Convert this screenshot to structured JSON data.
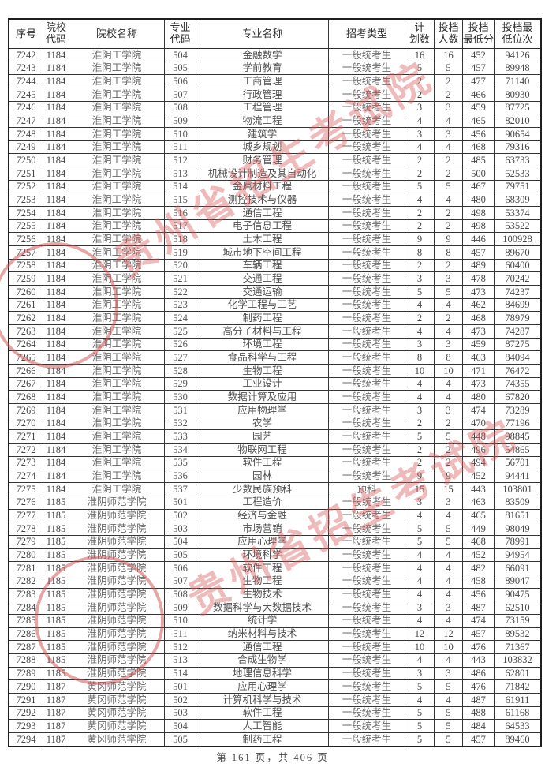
{
  "page": {
    "footer_text": "第 161 页，共 406 页"
  },
  "watermark": {
    "text": "贵州省招生考试院",
    "color": "#d65a5a"
  },
  "table": {
    "headers": [
      "序号",
      "院校\n代码",
      "院校名称",
      "专业\n代码",
      "专业名称",
      "招考类型",
      "计\n划数",
      "投档\n人数",
      "投档\n最低分",
      "投档最\n低位次"
    ],
    "rows": [
      [
        "7242",
        "1184",
        "淮阴工学院",
        "504",
        "金融数学",
        "一般统考生",
        "16",
        "16",
        "452",
        "94126"
      ],
      [
        "7243",
        "1184",
        "淮阴工学院",
        "505",
        "学前教育",
        "一般统考生",
        "5",
        "5",
        "457",
        "89948"
      ],
      [
        "7244",
        "1184",
        "淮阴工学院",
        "506",
        "工商管理",
        "一般统考生",
        "2",
        "2",
        "477",
        "71140"
      ],
      [
        "7245",
        "1184",
        "淮阴工学院",
        "507",
        "行政管理",
        "一般统考生",
        "2",
        "2",
        "466",
        "80930"
      ],
      [
        "7246",
        "1184",
        "淮阴工学院",
        "508",
        "工程管理",
        "一般统考生",
        "3",
        "3",
        "459",
        "87725"
      ],
      [
        "7247",
        "1184",
        "淮阴工学院",
        "509",
        "物流工程",
        "一般统考生",
        "4",
        "4",
        "465",
        "82010"
      ],
      [
        "7248",
        "1184",
        "淮阴工学院",
        "510",
        "建筑学",
        "一般统考生",
        "3",
        "3",
        "456",
        "90654"
      ],
      [
        "7249",
        "1184",
        "淮阴工学院",
        "511",
        "城乡规划",
        "一般统考生",
        "4",
        "4",
        "468",
        "79316"
      ],
      [
        "7250",
        "1184",
        "淮阴工学院",
        "512",
        "财务管理",
        "一般统考生",
        "2",
        "2",
        "485",
        "63733"
      ],
      [
        "7251",
        "1184",
        "淮阴工学院",
        "513",
        "机械设计制造及其自动化",
        "一般统考生",
        "2",
        "2",
        "500",
        "52533"
      ],
      [
        "7252",
        "1184",
        "淮阴工学院",
        "514",
        "金属材料工程",
        "一般统考生",
        "5",
        "5",
        "467",
        "79751"
      ],
      [
        "7253",
        "1184",
        "淮阴工学院",
        "515",
        "测控技术与仪器",
        "一般统考生",
        "4",
        "4",
        "480",
        "68309"
      ],
      [
        "7254",
        "1184",
        "淮阴工学院",
        "516",
        "通信工程",
        "一般统考生",
        "2",
        "2",
        "498",
        "53374"
      ],
      [
        "7255",
        "1184",
        "淮阴工学院",
        "517",
        "电子信息工程",
        "一般统考生",
        "2",
        "2",
        "498",
        "53522"
      ],
      [
        "7256",
        "1184",
        "淮阴工学院",
        "518",
        "土木工程",
        "一般统考生",
        "9",
        "9",
        "446",
        "100928"
      ],
      [
        "7257",
        "1184",
        "淮阴工学院",
        "519",
        "城市地下空间工程",
        "一般统考生",
        "8",
        "8",
        "457",
        "89670"
      ],
      [
        "7258",
        "1184",
        "淮阴工学院",
        "520",
        "车辆工程",
        "一般统考生",
        "2",
        "2",
        "489",
        "60400"
      ],
      [
        "7259",
        "1184",
        "淮阴工学院",
        "521",
        "交通工程",
        "一般统考生",
        "3",
        "3",
        "478",
        "70242"
      ],
      [
        "7260",
        "1184",
        "淮阴工学院",
        "522",
        "交通运输",
        "一般统考生",
        "5",
        "5",
        "473",
        "74237"
      ],
      [
        "7261",
        "1184",
        "淮阴工学院",
        "523",
        "化学工程与工艺",
        "一般统考生",
        "4",
        "4",
        "462",
        "84699"
      ],
      [
        "7262",
        "1184",
        "淮阴工学院",
        "524",
        "制药工程",
        "一般统考生",
        "2",
        "2",
        "468",
        "78979"
      ],
      [
        "7263",
        "1184",
        "淮阴工学院",
        "525",
        "高分子材料与工程",
        "一般统考生",
        "4",
        "4",
        "473",
        "74287"
      ],
      [
        "7264",
        "1184",
        "淮阴工学院",
        "526",
        "环境工程",
        "一般统考生",
        "3",
        "3",
        "459",
        "87275"
      ],
      [
        "7265",
        "1184",
        "淮阴工学院",
        "527",
        "食品科学与工程",
        "一般统考生",
        "8",
        "8",
        "463",
        "84094"
      ],
      [
        "7266",
        "1184",
        "淮阴工学院",
        "528",
        "生物工程",
        "一般统考生",
        "10",
        "10",
        "471",
        "76472"
      ],
      [
        "7267",
        "1184",
        "淮阴工学院",
        "529",
        "工业设计",
        "一般统考生",
        "4",
        "4",
        "473",
        "74355"
      ],
      [
        "7268",
        "1184",
        "淮阴工学院",
        "530",
        "数据计算及应用",
        "一般统考生",
        "4",
        "4",
        "480",
        "67820"
      ],
      [
        "7269",
        "1184",
        "淮阴工学院",
        "531",
        "应用物理学",
        "一般统考生",
        "3",
        "3",
        "474",
        "73289"
      ],
      [
        "7270",
        "1184",
        "淮阴工学院",
        "532",
        "农学",
        "一般统考生",
        "2",
        "2",
        "470",
        "77196"
      ],
      [
        "7271",
        "1184",
        "淮阴工学院",
        "533",
        "园艺",
        "一般统考生",
        "5",
        "5",
        "448",
        "98845"
      ],
      [
        "7272",
        "1184",
        "淮阴工学院",
        "534",
        "物联网工程",
        "一般统考生",
        "2",
        "2",
        "496",
        "54865"
      ],
      [
        "7273",
        "1184",
        "淮阴工学院",
        "535",
        "软件工程",
        "一般统考生",
        "2",
        "2",
        "494",
        "56701"
      ],
      [
        "7274",
        "1184",
        "淮阴工学院",
        "536",
        "园林",
        "一般统考生",
        "9",
        "9",
        "452",
        "94441"
      ],
      [
        "7275",
        "1184",
        "淮阴工学院",
        "537",
        "少数民族预科",
        "预科",
        "15",
        "15",
        "443",
        "103801"
      ],
      [
        "7276",
        "1185",
        "淮阴师范学院",
        "501",
        "工程造价",
        "一般统考生",
        "3",
        "3",
        "463",
        "83509"
      ],
      [
        "7277",
        "1185",
        "淮阴师范学院",
        "502",
        "经济与金融",
        "一般统考生",
        "4",
        "4",
        "465",
        "81651"
      ],
      [
        "7278",
        "1185",
        "淮阴师范学院",
        "503",
        "市场营销",
        "一般统考生",
        "5",
        "5",
        "449",
        "98049"
      ],
      [
        "7279",
        "1185",
        "淮阴师范学院",
        "504",
        "应用心理学",
        "一般统考生",
        "5",
        "5",
        "468",
        "78991"
      ],
      [
        "7280",
        "1185",
        "淮阴师范学院",
        "505",
        "环境科学",
        "一般统考生",
        "4",
        "4",
        "452",
        "94954"
      ],
      [
        "7281",
        "1185",
        "淮阴师范学院",
        "506",
        "软件工程",
        "一般统考生",
        "4",
        "4",
        "482",
        "66091"
      ],
      [
        "7282",
        "1185",
        "淮阴师范学院",
        "507",
        "生物工程",
        "一般统考生",
        "4",
        "4",
        "458",
        "89047"
      ],
      [
        "7283",
        "1185",
        "淮阴师范学院",
        "508",
        "生物技术",
        "一般统考生",
        "4",
        "4",
        "456",
        "90475"
      ],
      [
        "7284",
        "1185",
        "淮阴师范学院",
        "509",
        "数据科学与大数据技术",
        "一般统考生",
        "3",
        "3",
        "487",
        "62510"
      ],
      [
        "7285",
        "1185",
        "淮阴师范学院",
        "510",
        "统计学",
        "一般统考生",
        "4",
        "4",
        "474",
        "73159"
      ],
      [
        "7286",
        "1185",
        "淮阴师范学院",
        "511",
        "纳米材料与技术",
        "一般统考生",
        "12",
        "12",
        "457",
        "89532"
      ],
      [
        "7287",
        "1185",
        "淮阴师范学院",
        "512",
        "通信工程",
        "一般统考生",
        "10",
        "10",
        "476",
        "71367"
      ],
      [
        "7288",
        "1185",
        "淮阴师范学院",
        "513",
        "合成生物学",
        "一般统考生",
        "4",
        "4",
        "443",
        "103832"
      ],
      [
        "7289",
        "1185",
        "淮阴师范学院",
        "514",
        "地理信息科学",
        "一般统考生",
        "3",
        "3",
        "486",
        "62801"
      ],
      [
        "7290",
        "1187",
        "黄冈师范学院",
        "501",
        "应用心理学",
        "一般统考生",
        "5",
        "5",
        "476",
        "71842"
      ],
      [
        "7291",
        "1187",
        "黄冈师范学院",
        "502",
        "计算机科学与技术",
        "一般统考生",
        "4",
        "4",
        "487",
        "61911"
      ],
      [
        "7292",
        "1187",
        "黄冈师范学院",
        "503",
        "软件工程",
        "一般统考生",
        "5",
        "5",
        "488",
        "61168"
      ],
      [
        "7293",
        "1187",
        "黄冈师范学院",
        "504",
        "人工智能",
        "一般统考生",
        "5",
        "5",
        "484",
        "64533"
      ],
      [
        "7294",
        "1187",
        "黄冈师范学院",
        "505",
        "制药工程",
        "一般统考生",
        "5",
        "5",
        "457",
        "89460"
      ]
    ]
  }
}
